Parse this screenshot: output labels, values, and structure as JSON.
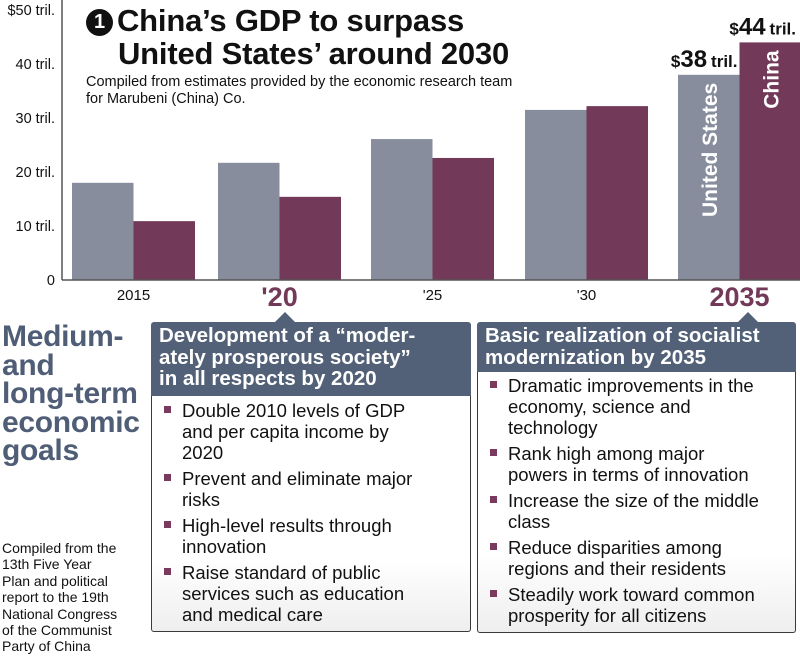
{
  "chart_data": {
    "type": "bar",
    "title": "China's GDP to surpass United States' around 2030",
    "title_number": "1",
    "subtitle": "Compiled from estimates provided by the economic research team for Marubeni (China) Co.",
    "xlabel": "",
    "ylabel": "",
    "ylim": [
      0,
      50
    ],
    "grid": false,
    "y_ticks": [
      {
        "value": 0,
        "label": "0"
      },
      {
        "value": 10,
        "label": "10 tril."
      },
      {
        "value": 20,
        "label": "20 tril."
      },
      {
        "value": 30,
        "label": "30 tril."
      },
      {
        "value": 40,
        "label": "40 tril."
      },
      {
        "value": 50,
        "label": "$50 tril."
      }
    ],
    "categories": [
      "2015",
      "'20",
      "'25",
      "'30",
      "2035"
    ],
    "highlighted_categories": [
      "'20",
      "2035"
    ],
    "series": [
      {
        "name": "United States",
        "color": "#878d9c",
        "values": [
          18.0,
          21.7,
          26.1,
          31.5,
          38
        ]
      },
      {
        "name": "China",
        "color": "#733958",
        "values": [
          10.9,
          15.4,
          22.6,
          32.2,
          44
        ]
      }
    ],
    "annotations": [
      {
        "series": "United States",
        "category": "2035",
        "prefix": "$",
        "value": "38",
        "suffix": "tril."
      },
      {
        "series": "China",
        "category": "2035",
        "prefix": "$",
        "value": "44",
        "suffix": "tril."
      }
    ],
    "in_bar_labels": [
      {
        "series": "United States",
        "category": "2035",
        "text": "United States"
      },
      {
        "series": "China",
        "category": "2035",
        "text": "China"
      }
    ]
  },
  "title": {
    "number": "❶",
    "line1": "China’s GDP to surpass",
    "line2": "United States’ around 2030",
    "subtitle_line1": "Compiled from estimates provided by the economic research team",
    "subtitle_line2": "for Marubeni (China) Co."
  },
  "side": {
    "heading_lines": [
      "Medium-",
      "and",
      "long-term",
      "economic",
      "goals"
    ],
    "source_lines": [
      "Compiled from the",
      "13th Five Year",
      "Plan and political",
      "report to the 19th",
      "National Congress",
      "of the Communist",
      "Party of China"
    ]
  },
  "goals": [
    {
      "year": "'20",
      "header_lines": [
        "Development of a “moder-",
        "ately prosperous society”",
        "in all respects by 2020"
      ],
      "items": [
        [
          "Double 2010 levels of GDP",
          "and per capita income by",
          "2020"
        ],
        [
          "Prevent and eliminate major",
          "risks"
        ],
        [
          "High-level results through",
          "innovation"
        ],
        [
          "Raise standard of public",
          "services such as education",
          "and medical care"
        ]
      ]
    },
    {
      "year": "2035",
      "header_lines": [
        "Basic realization of socialist",
        "modernization by 2035"
      ],
      "items": [
        [
          "Dramatic improvements in the",
          "economy, science and",
          "technology"
        ],
        [
          "Rank high among major",
          "powers in terms of innovation"
        ],
        [
          "Increase the size of the middle",
          "class"
        ],
        [
          "Reduce disparities among",
          "regions and their residents"
        ],
        [
          "Steadily work toward common",
          "prosperity for all citizens"
        ]
      ]
    }
  ],
  "colors": {
    "us_bar": "#878d9c",
    "china_bar": "#733958",
    "accent_year": "#733958",
    "box_header": "#536178",
    "side_heading": "#4f5e76"
  }
}
